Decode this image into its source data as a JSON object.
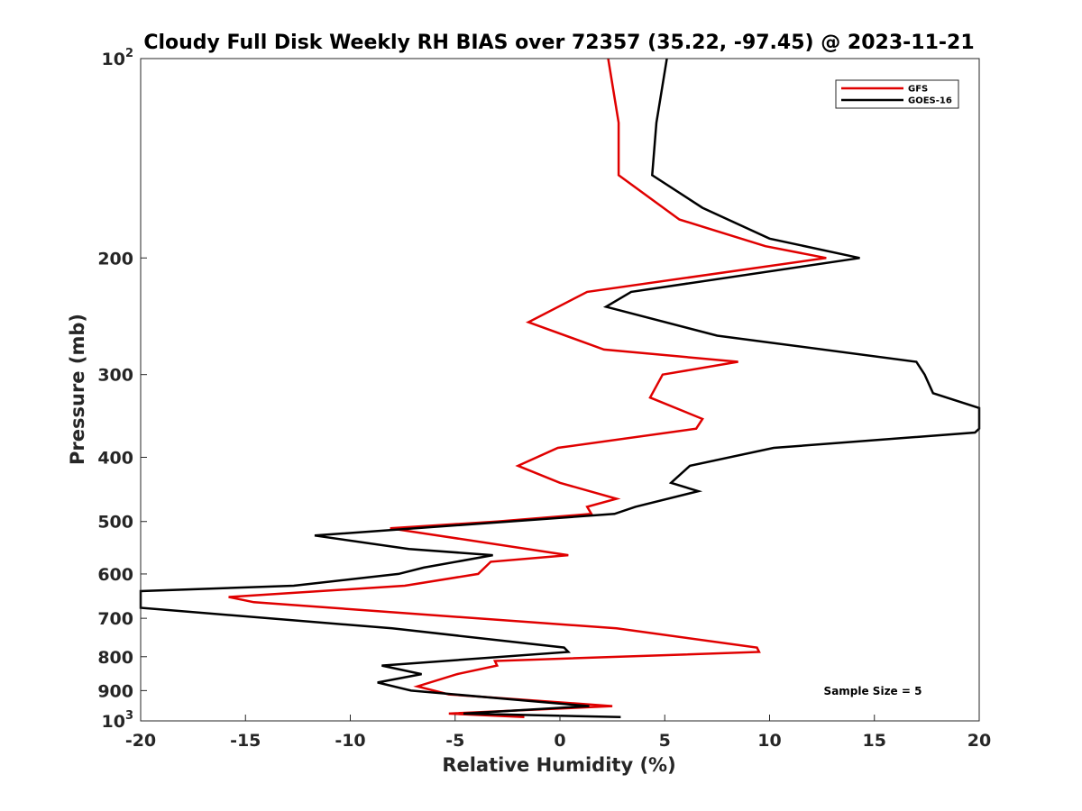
{
  "chart_data": {
    "type": "line",
    "title": "Cloudy Full Disk Weekly RH BIAS over 72357 (35.22, -97.45) @ 2023-11-21",
    "xlabel": "Relative Humidity (%)",
    "ylabel": "Pressure (mb)",
    "xlim": [
      -20,
      20
    ],
    "ylim": [
      100,
      1000
    ],
    "yscale": "log",
    "y_reversed": true,
    "x_ticks": [
      -20,
      -15,
      -10,
      -5,
      0,
      5,
      10,
      15,
      20
    ],
    "x_tick_labels": [
      "-20",
      "-15",
      "-10",
      "-5",
      "0",
      "5",
      "10",
      "15",
      "20"
    ],
    "y_ticks": [
      100,
      200,
      300,
      400,
      500,
      600,
      700,
      800,
      900,
      1000
    ],
    "y_tick_labels": [
      {
        "base": "10",
        "exp": "2"
      },
      {
        "base": "200",
        "exp": ""
      },
      {
        "base": "300",
        "exp": ""
      },
      {
        "base": "400",
        "exp": ""
      },
      {
        "base": "500",
        "exp": ""
      },
      {
        "base": "600",
        "exp": ""
      },
      {
        "base": "700",
        "exp": ""
      },
      {
        "base": "800",
        "exp": ""
      },
      {
        "base": "900",
        "exp": ""
      },
      {
        "base": "10",
        "exp": "3"
      }
    ],
    "grid": false,
    "legend": {
      "position": "top-right",
      "entries": [
        "GFS",
        "GOES-16"
      ]
    },
    "annotations": [
      {
        "text": "Sample Size = 5",
        "position": "bottom-right"
      }
    ],
    "series": [
      {
        "name": "GFS",
        "color": "#e00000",
        "points": [
          {
            "x": 2.3,
            "y": 100
          },
          {
            "x": 2.8,
            "y": 125
          },
          {
            "x": 2.8,
            "y": 150
          },
          {
            "x": 5.7,
            "y": 175
          },
          {
            "x": 9.8,
            "y": 192
          },
          {
            "x": 12.7,
            "y": 200
          },
          {
            "x": 1.3,
            "y": 225
          },
          {
            "x": -1.5,
            "y": 250
          },
          {
            "x": 2.1,
            "y": 275
          },
          {
            "x": 8.5,
            "y": 287
          },
          {
            "x": 4.9,
            "y": 300
          },
          {
            "x": 4.3,
            "y": 325
          },
          {
            "x": 6.8,
            "y": 350
          },
          {
            "x": 6.5,
            "y": 362
          },
          {
            "x": -0.1,
            "y": 387
          },
          {
            "x": -2.0,
            "y": 412
          },
          {
            "x": 0.0,
            "y": 437
          },
          {
            "x": 2.7,
            "y": 462
          },
          {
            "x": 1.3,
            "y": 475
          },
          {
            "x": 1.5,
            "y": 487
          },
          {
            "x": -3.0,
            "y": 500
          },
          {
            "x": -8.1,
            "y": 512
          },
          {
            "x": 0.4,
            "y": 562
          },
          {
            "x": -3.3,
            "y": 575
          },
          {
            "x": -3.9,
            "y": 600
          },
          {
            "x": -7.4,
            "y": 625
          },
          {
            "x": -15.8,
            "y": 650
          },
          {
            "x": -14.6,
            "y": 662
          },
          {
            "x": 2.7,
            "y": 725
          },
          {
            "x": 9.4,
            "y": 775
          },
          {
            "x": 9.5,
            "y": 787
          },
          {
            "x": -3.1,
            "y": 812
          },
          {
            "x": -3.0,
            "y": 825
          },
          {
            "x": -4.9,
            "y": 850
          },
          {
            "x": -6.8,
            "y": 887
          },
          {
            "x": -5.3,
            "y": 912
          },
          {
            "x": 2.5,
            "y": 950
          },
          {
            "x": -5.3,
            "y": 975
          },
          {
            "x": -1.7,
            "y": 987
          }
        ]
      },
      {
        "name": "GOES-16",
        "color": "#000000",
        "points": [
          {
            "x": 5.1,
            "y": 100
          },
          {
            "x": 4.6,
            "y": 125
          },
          {
            "x": 4.4,
            "y": 150
          },
          {
            "x": 6.8,
            "y": 168
          },
          {
            "x": 10.0,
            "y": 187
          },
          {
            "x": 14.3,
            "y": 200
          },
          {
            "x": 3.4,
            "y": 225
          },
          {
            "x": 2.2,
            "y": 237
          },
          {
            "x": 7.5,
            "y": 262
          },
          {
            "x": 17.0,
            "y": 287
          },
          {
            "x": 17.4,
            "y": 300
          },
          {
            "x": 17.8,
            "y": 320
          },
          {
            "x": 20.0,
            "y": 337
          },
          {
            "x": 20.0,
            "y": 362
          },
          {
            "x": 19.8,
            "y": 367
          },
          {
            "x": 10.2,
            "y": 387
          },
          {
            "x": 6.2,
            "y": 412
          },
          {
            "x": 5.3,
            "y": 437
          },
          {
            "x": 6.6,
            "y": 450
          },
          {
            "x": 3.6,
            "y": 475
          },
          {
            "x": 2.6,
            "y": 487
          },
          {
            "x": -11.7,
            "y": 525
          },
          {
            "x": -7.2,
            "y": 550
          },
          {
            "x": -3.2,
            "y": 562
          },
          {
            "x": -6.5,
            "y": 587
          },
          {
            "x": -7.7,
            "y": 600
          },
          {
            "x": -12.7,
            "y": 625
          },
          {
            "x": -20.0,
            "y": 637
          },
          {
            "x": -20.0,
            "y": 675
          },
          {
            "x": -8.0,
            "y": 725
          },
          {
            "x": 0.2,
            "y": 775
          },
          {
            "x": 0.4,
            "y": 787
          },
          {
            "x": -8.5,
            "y": 825
          },
          {
            "x": -6.6,
            "y": 850
          },
          {
            "x": -8.7,
            "y": 875
          },
          {
            "x": -7.1,
            "y": 900
          },
          {
            "x": 1.4,
            "y": 950
          },
          {
            "x": -4.6,
            "y": 975
          },
          {
            "x": 2.9,
            "y": 987
          }
        ]
      }
    ]
  }
}
